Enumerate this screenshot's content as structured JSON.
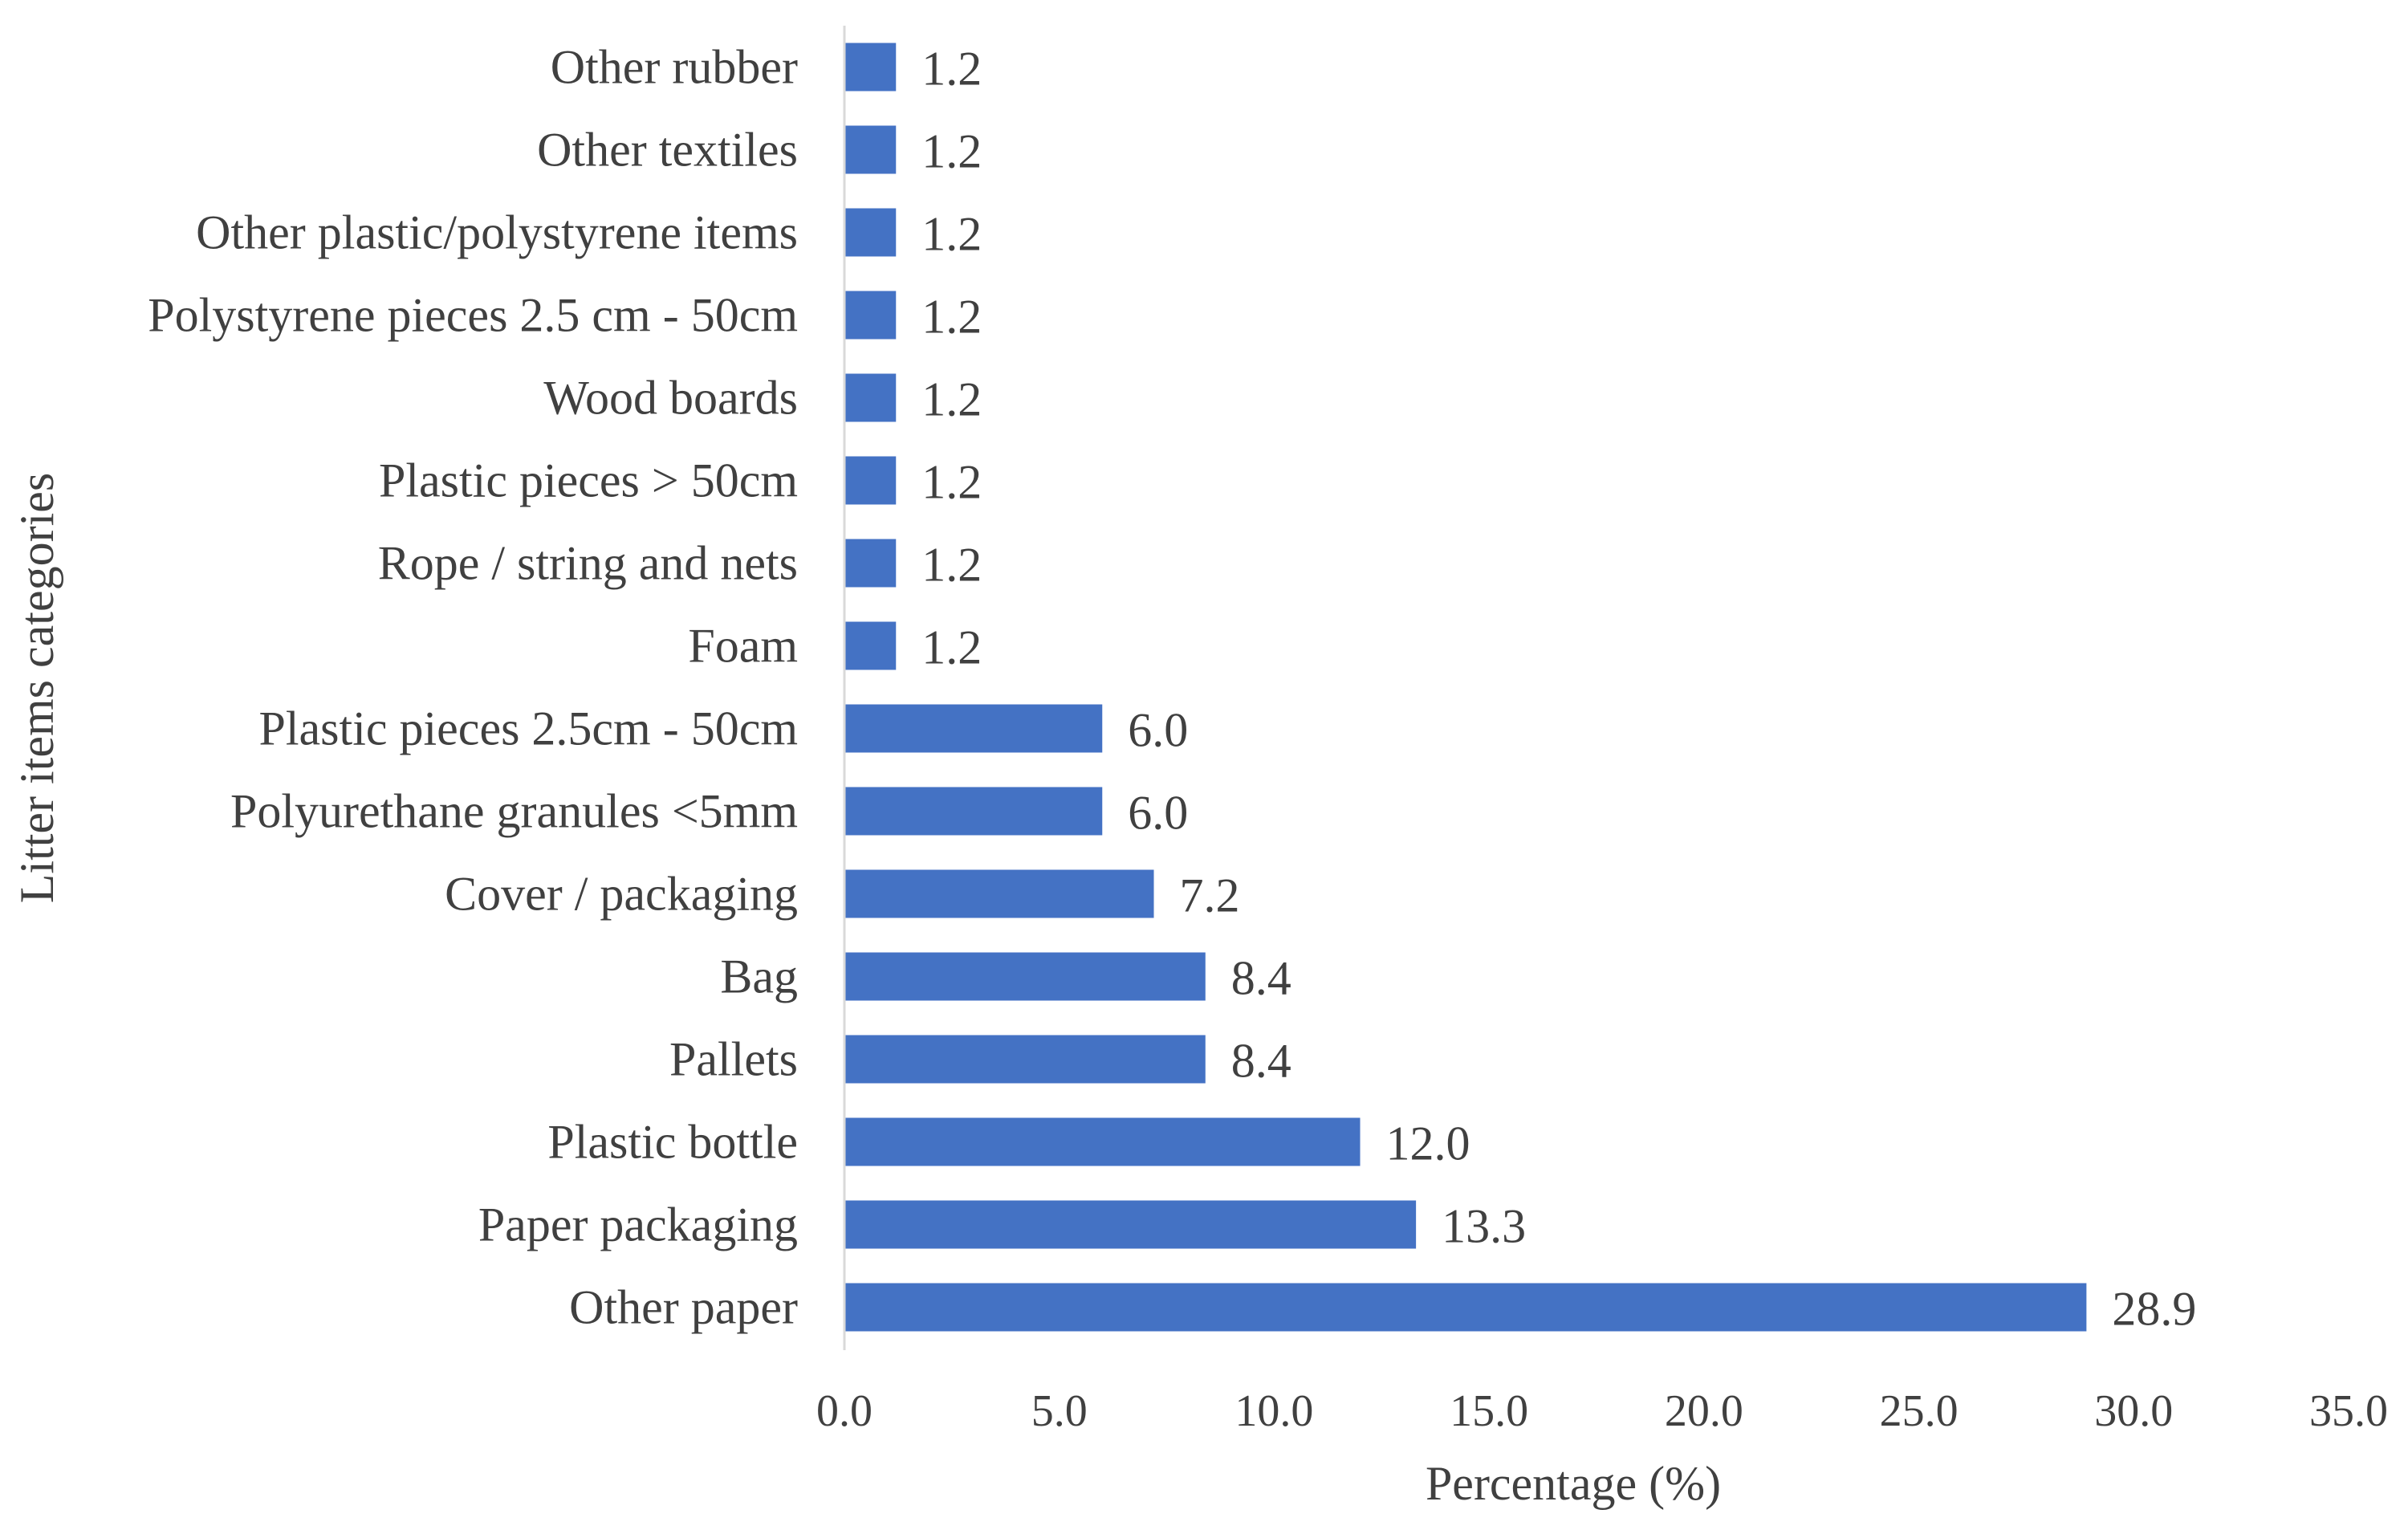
{
  "chart_data": {
    "type": "bar",
    "orientation": "horizontal",
    "title": "",
    "xlabel": "Percentage  (%)",
    "ylabel": "Litter items categories",
    "xlim": [
      0,
      35
    ],
    "xticks": [
      "0.0",
      "5.0",
      "10.0",
      "15.0",
      "20.0",
      "25.0",
      "30.0",
      "35.0"
    ],
    "grid": false,
    "legend": "none",
    "bar_color": "#4472C4",
    "categories": [
      "Other rubber",
      "Other textiles",
      "Other plastic/polystyrene items",
      "Polystyrene pieces 2.5 cm - 50cm",
      "Wood boards",
      "Plastic pieces > 50cm",
      "Rope / string and nets",
      "Foam",
      "Plastic pieces 2.5cm - 50cm",
      "Polyurethane granules <5mm",
      "Cover / packaging",
      "Bag",
      "Pallets",
      "Plastic bottle",
      "Paper packaging",
      "Other paper"
    ],
    "values": [
      1.2,
      1.2,
      1.2,
      1.2,
      1.2,
      1.2,
      1.2,
      1.2,
      6.0,
      6.0,
      7.2,
      8.4,
      8.4,
      12.0,
      13.3,
      28.9
    ],
    "data_labels": [
      "1.2",
      "1.2",
      "1.2",
      "1.2",
      "1.2",
      "1.2",
      "1.2",
      "1.2",
      "6.0",
      "6.0",
      "7.2",
      "8.4",
      "8.4",
      "12.0",
      "13.3",
      "28.9"
    ]
  }
}
